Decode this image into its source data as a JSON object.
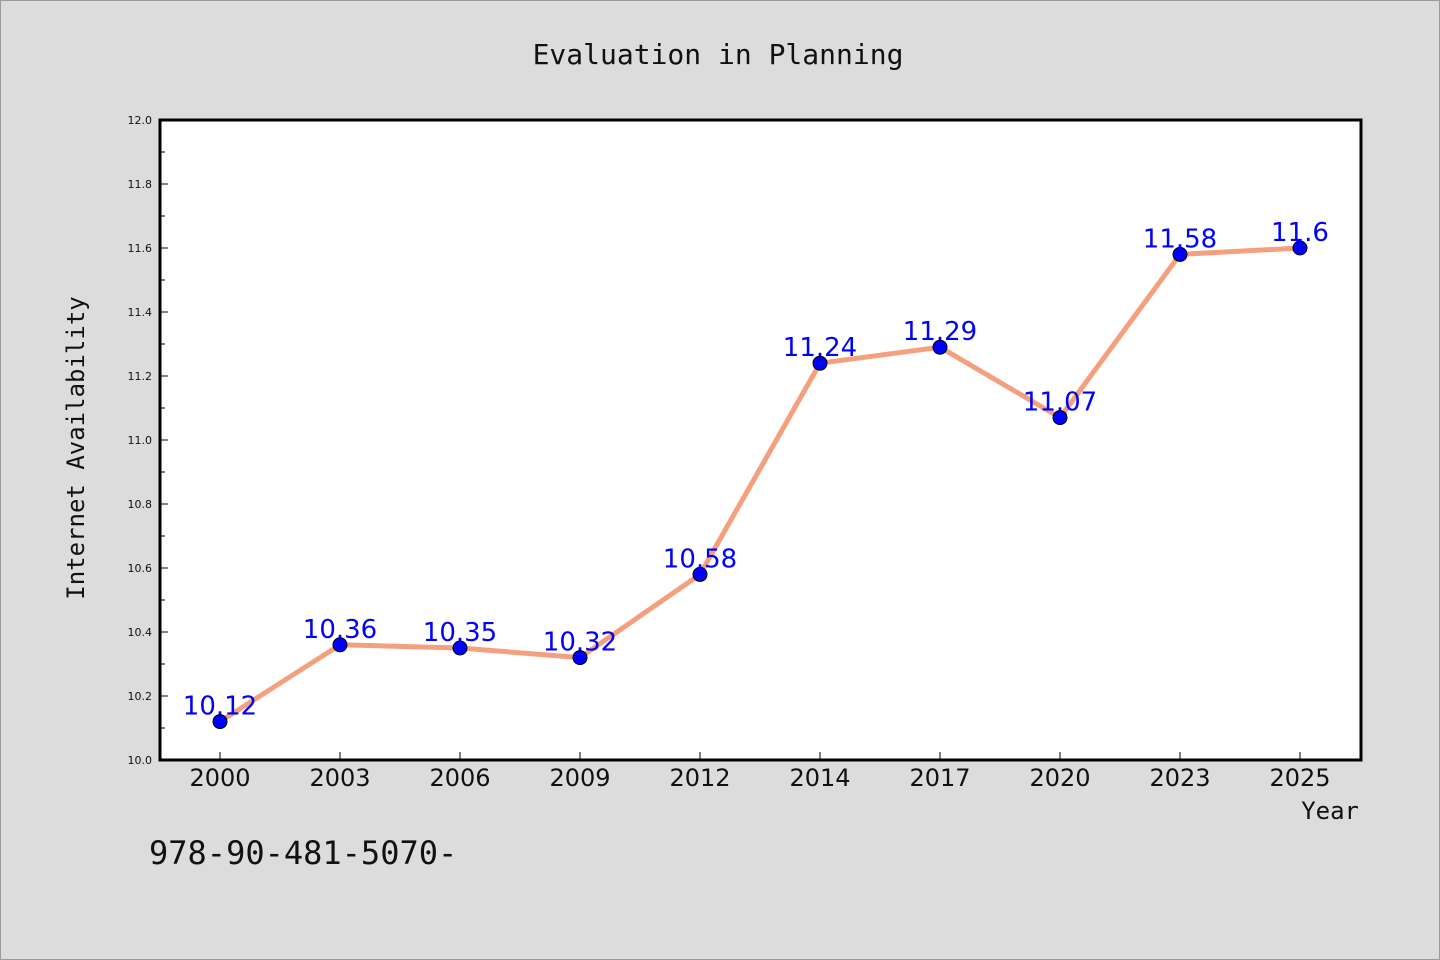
{
  "chart_data": {
    "type": "line",
    "title": "Evaluation in Planning",
    "xlabel": "Year",
    "ylabel": "Internet Availability",
    "categories": [
      "2000",
      "2003",
      "2006",
      "2009",
      "2012",
      "2014",
      "2017",
      "2020",
      "2023",
      "2025"
    ],
    "series": [
      {
        "values": [
          10.12,
          10.36,
          10.35,
          10.32,
          10.58,
          11.24,
          11.29,
          11.07,
          11.58,
          11.6
        ],
        "line_color": "#f4a07e",
        "marker_color": "#0000ff"
      }
    ],
    "data_labels": [
      "10.12",
      "10.36",
      "10.35",
      "10.32",
      "10.58",
      "11.24",
      "11.29",
      "11.07",
      "11.58",
      "11.6"
    ],
    "ylim": [
      10.0,
      12.0
    ],
    "yticks": [
      "10.0",
      "10.2",
      "10.4",
      "10.6",
      "10.8",
      "11.0",
      "11.2",
      "11.4",
      "11.6",
      "11.8",
      "12.0"
    ],
    "grid": false,
    "legend": "none"
  },
  "footer": {
    "text": "978-90-481-5070-"
  }
}
